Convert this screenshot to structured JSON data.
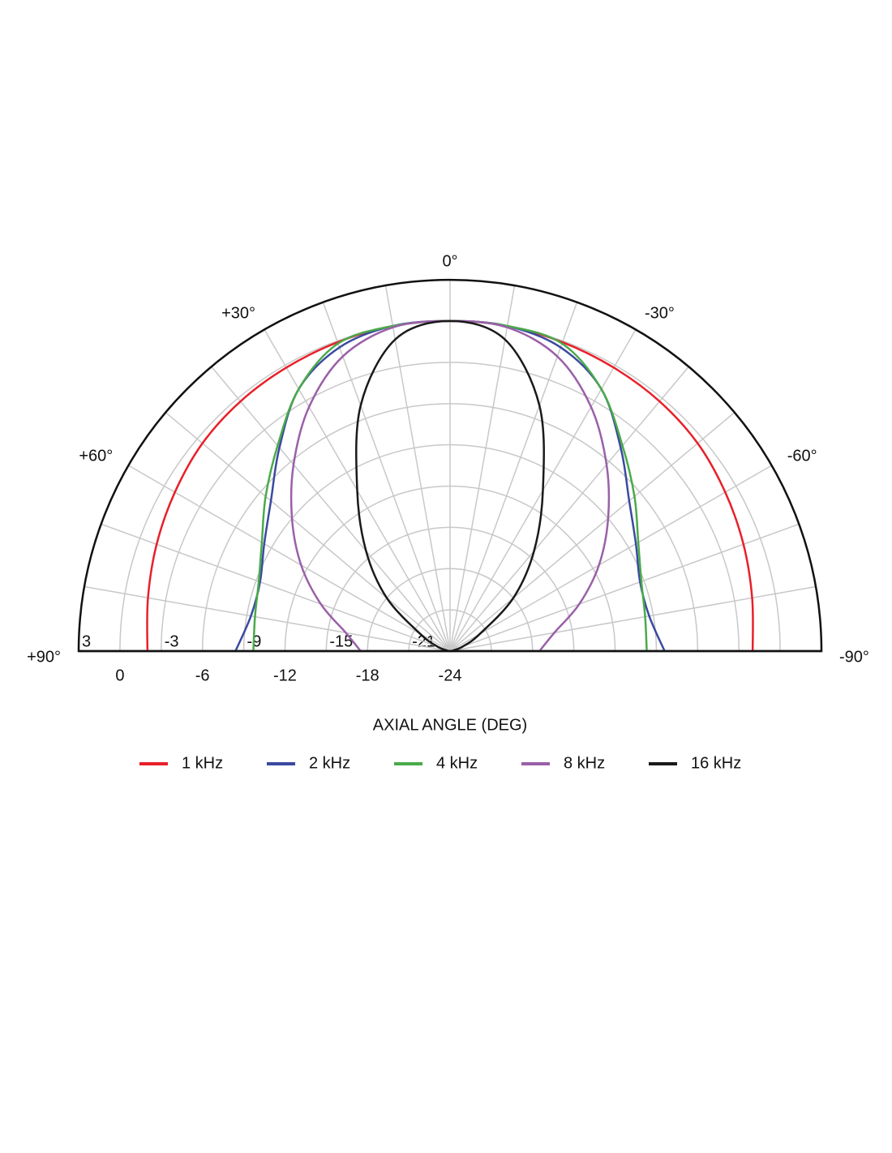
{
  "chart_data": {
    "type": "polar",
    "xlabel": "AXIAL ANGLE (DEG)",
    "theta": [
      90,
      80,
      70,
      60,
      50,
      40,
      30,
      20,
      10,
      0,
      -10,
      -20,
      -30,
      -40,
      -50,
      -60,
      -70,
      -80,
      -90
    ],
    "thetaticks": [
      {
        "value": 90,
        "label": "+90°"
      },
      {
        "value": 60,
        "label": "+60°"
      },
      {
        "value": 30,
        "label": "+30°"
      },
      {
        "value": 0,
        "label": "0°"
      },
      {
        "value": -30,
        "label": "-30°"
      },
      {
        "value": -60,
        "label": "-60°"
      },
      {
        "value": -90,
        "label": "-90°"
      }
    ],
    "rlim": [
      -24,
      3
    ],
    "rticks": [
      3,
      0,
      -3,
      -6,
      -9,
      -12,
      -15,
      -18,
      -21,
      -24
    ],
    "grid": true,
    "series": [
      {
        "name": "1 kHz",
        "color": "#e8202a",
        "values": [
          -2.0,
          -1.7,
          -1.3,
          -0.9,
          -0.5,
          -0.3,
          -0.2,
          -0.1,
          0,
          0,
          0,
          -0.1,
          -0.2,
          -0.3,
          -0.5,
          -0.9,
          -1.3,
          -1.7,
          -2.0
        ]
      },
      {
        "name": "2 kHz",
        "color": "#3a4aa0",
        "values": [
          -8.4,
          -9.3,
          -9.3,
          -8.4,
          -7.0,
          -4.7,
          -2.0,
          -0.5,
          0,
          0,
          0,
          -0.5,
          -2.0,
          -4.7,
          -7.0,
          -8.4,
          -9.3,
          -9.3,
          -8.4
        ]
      },
      {
        "name": "4 kHz",
        "color": "#4aaa4a",
        "values": [
          -9.7,
          -9.6,
          -9.2,
          -8.2,
          -6.5,
          -4.5,
          -2.0,
          -0.2,
          0,
          0,
          0,
          -0.2,
          -2.0,
          -4.5,
          -6.5,
          -8.2,
          -9.2,
          -9.6,
          -9.7
        ]
      },
      {
        "name": "8 kHz",
        "color": "#9a60a8",
        "values": [
          -17.5,
          -16.3,
          -14.0,
          -11.5,
          -9.0,
          -6.3,
          -3.5,
          -1.2,
          -0.1,
          0,
          -0.1,
          -1.2,
          -3.5,
          -6.3,
          -9.0,
          -11.5,
          -14.0,
          -16.3,
          -17.5
        ]
      },
      {
        "name": "16 kHz",
        "color": "#1a1a1a",
        "values": [
          -24,
          -23.8,
          -23.0,
          -21.5,
          -18.0,
          -14.5,
          -10.5,
          -5.0,
          -1.0,
          0,
          -1.0,
          -5.0,
          -10.5,
          -14.5,
          -18.0,
          -21.5,
          -23.0,
          -23.8,
          -24
        ]
      }
    ]
  }
}
